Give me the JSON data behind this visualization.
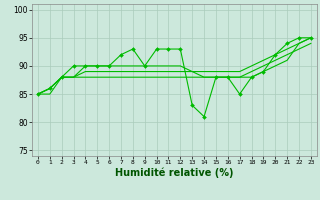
{
  "background_color": "#cce8dc",
  "grid_color": "#aaccbb",
  "line_color": "#00bb00",
  "xlabel": "Humidité relative (%)",
  "xlabel_fontsize": 7,
  "ylim": [
    74,
    101
  ],
  "xlim": [
    -0.5,
    23.5
  ],
  "yticks": [
    75,
    80,
    85,
    90,
    95,
    100
  ],
  "xticks": [
    0,
    1,
    2,
    3,
    4,
    5,
    6,
    7,
    8,
    9,
    10,
    11,
    12,
    13,
    14,
    15,
    16,
    17,
    18,
    19,
    20,
    21,
    22,
    23
  ],
  "series": [
    [
      85,
      86,
      88,
      90,
      90,
      90,
      90,
      92,
      93,
      90,
      93,
      93,
      93,
      83,
      81,
      88,
      88,
      85,
      88,
      89,
      92,
      94,
      95,
      95
    ],
    [
      85,
      86,
      88,
      88,
      90,
      90,
      90,
      90,
      90,
      90,
      90,
      90,
      90,
      89,
      88,
      88,
      88,
      88,
      89,
      90,
      91,
      92,
      93,
      94
    ],
    [
      85,
      86,
      88,
      88,
      89,
      89,
      89,
      89,
      89,
      89,
      89,
      89,
      89,
      89,
      89,
      89,
      89,
      89,
      90,
      91,
      92,
      93,
      94,
      95
    ],
    [
      85,
      85,
      88,
      88,
      88,
      88,
      88,
      88,
      88,
      88,
      88,
      88,
      88,
      88,
      88,
      88,
      88,
      88,
      88,
      89,
      90,
      91,
      94,
      95
    ]
  ]
}
